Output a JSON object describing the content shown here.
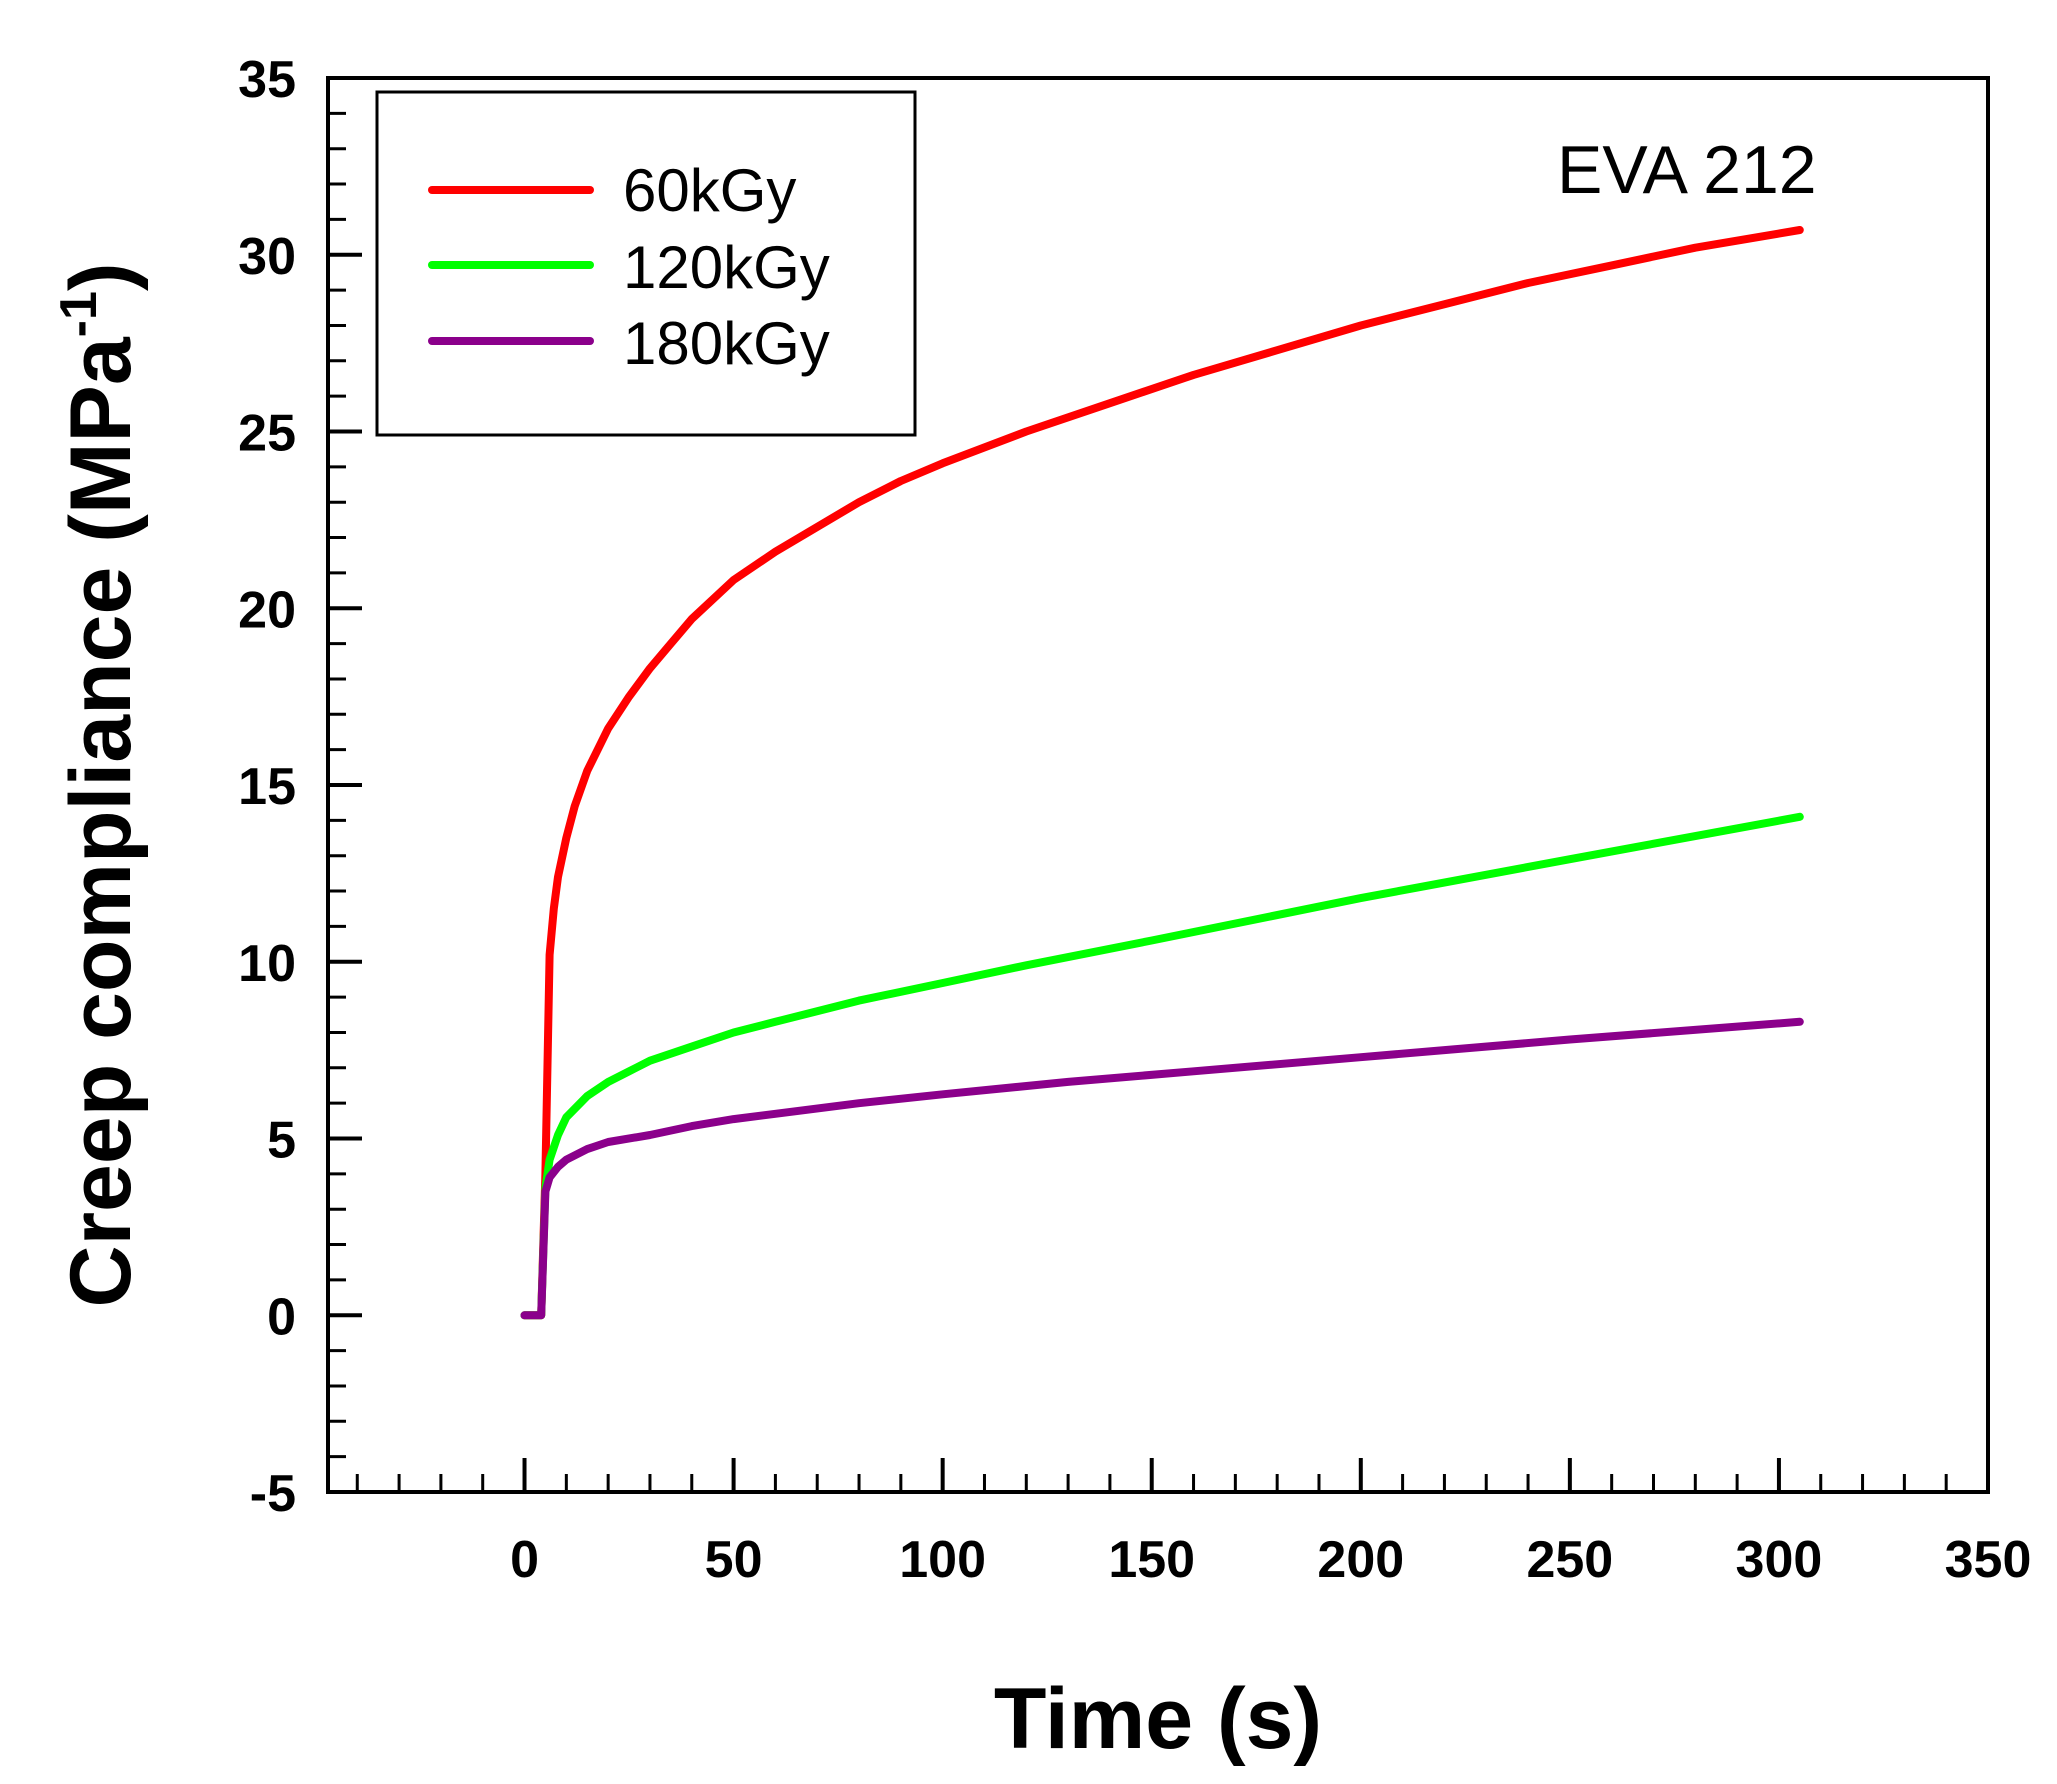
{
  "chart_data": {
    "type": "line",
    "title": "",
    "annotation": "EVA 212",
    "xlabel": "Time (s)",
    "ylabel_main": "Creep compliance (MPa",
    "ylabel_sup": "-1",
    "ylabel_close": ")",
    "xlim": [
      -47,
      350
    ],
    "ylim": [
      -5,
      35
    ],
    "x_ticks": [
      0,
      50,
      100,
      150,
      200,
      250,
      300,
      350
    ],
    "x_tick_labels": [
      "0",
      "50",
      "100",
      "150",
      "200",
      "250",
      "300",
      "350"
    ],
    "y_ticks": [
      -5,
      0,
      5,
      10,
      15,
      20,
      25,
      30,
      35
    ],
    "y_tick_labels": [
      "-5",
      "0",
      "5",
      "10",
      "15",
      "20",
      "25",
      "30",
      "35"
    ],
    "x_minor_step": 10,
    "y_minor_step": 1,
    "grid": false,
    "legend_position": "top-left",
    "series": [
      {
        "name": "60kGy",
        "color": "#ff0000",
        "points": [
          [
            0,
            0
          ],
          [
            4,
            0
          ],
          [
            5,
            4
          ],
          [
            6,
            10.2
          ],
          [
            7,
            11.5
          ],
          [
            8,
            12.4
          ],
          [
            10,
            13.5
          ],
          [
            12,
            14.4
          ],
          [
            15,
            15.4
          ],
          [
            20,
            16.6
          ],
          [
            25,
            17.5
          ],
          [
            30,
            18.3
          ],
          [
            35,
            19.0
          ],
          [
            40,
            19.7
          ],
          [
            50,
            20.8
          ],
          [
            60,
            21.6
          ],
          [
            70,
            22.3
          ],
          [
            80,
            23.0
          ],
          [
            90,
            23.6
          ],
          [
            100,
            24.1
          ],
          [
            120,
            25.0
          ],
          [
            140,
            25.8
          ],
          [
            160,
            26.6
          ],
          [
            180,
            27.3
          ],
          [
            200,
            28.0
          ],
          [
            220,
            28.6
          ],
          [
            240,
            29.2
          ],
          [
            260,
            29.7
          ],
          [
            280,
            30.2
          ],
          [
            305,
            30.7
          ]
        ]
      },
      {
        "name": "120kGy",
        "color": "#00ff00",
        "points": [
          [
            0,
            0
          ],
          [
            4,
            0
          ],
          [
            5,
            3.6
          ],
          [
            6,
            4.4
          ],
          [
            8,
            5.1
          ],
          [
            10,
            5.6
          ],
          [
            15,
            6.2
          ],
          [
            20,
            6.6
          ],
          [
            25,
            6.9
          ],
          [
            30,
            7.2
          ],
          [
            40,
            7.6
          ],
          [
            50,
            8.0
          ],
          [
            60,
            8.3
          ],
          [
            80,
            8.9
          ],
          [
            100,
            9.4
          ],
          [
            120,
            9.9
          ],
          [
            150,
            10.6
          ],
          [
            200,
            11.8
          ],
          [
            250,
            12.9
          ],
          [
            305,
            14.1
          ]
        ]
      },
      {
        "name": "180kGy",
        "color": "#8b008b",
        "points": [
          [
            0,
            0
          ],
          [
            4,
            0
          ],
          [
            5,
            3.5
          ],
          [
            6,
            3.9
          ],
          [
            8,
            4.2
          ],
          [
            10,
            4.4
          ],
          [
            15,
            4.7
          ],
          [
            20,
            4.9
          ],
          [
            30,
            5.1
          ],
          [
            40,
            5.35
          ],
          [
            50,
            5.55
          ],
          [
            60,
            5.7
          ],
          [
            80,
            6.0
          ],
          [
            100,
            6.25
          ],
          [
            130,
            6.6
          ],
          [
            160,
            6.9
          ],
          [
            200,
            7.3
          ],
          [
            250,
            7.8
          ],
          [
            305,
            8.3
          ]
        ]
      }
    ]
  }
}
